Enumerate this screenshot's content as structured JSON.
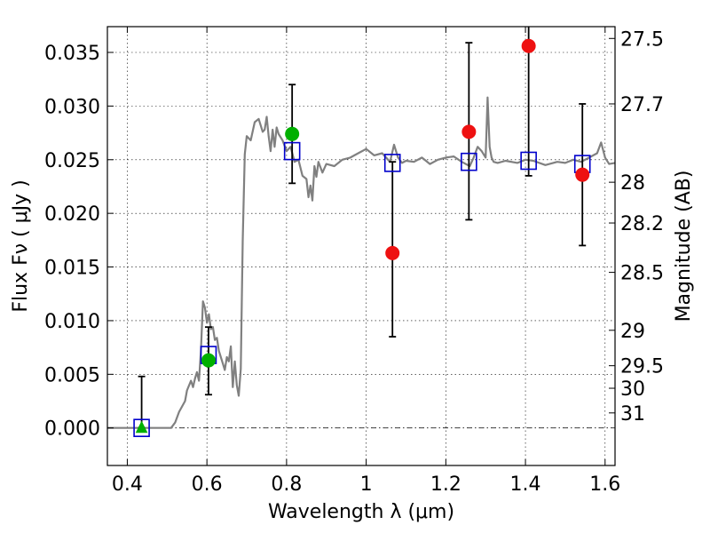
{
  "chart_data": {
    "type": "scatter",
    "xlabel": "Wavelength  λ (μm)",
    "ylabel": "Flux  Fν  ( μJy )",
    "ylabel_right": "Magnitude (AB)",
    "xlim": [
      0.35,
      1.625
    ],
    "ylim": [
      -0.0035,
      0.0374
    ],
    "x_ticks": [
      0.4,
      0.6,
      0.8,
      1.0,
      1.2,
      1.4,
      1.6
    ],
    "x_tick_labels": [
      "0.4",
      "0.6",
      "0.8",
      "1",
      "1.2",
      "1.4",
      "1.6"
    ],
    "y_ticks": [
      0.0,
      0.005,
      0.01,
      0.015,
      0.02,
      0.025,
      0.03,
      0.035
    ],
    "y_tick_labels": [
      "0.000",
      "0.005",
      "0.010",
      "0.015",
      "0.020",
      "0.025",
      "0.030",
      "0.035"
    ],
    "magnitude_ticks": [
      {
        "label": "27.5",
        "flux": 0.0363
      },
      {
        "label": "27.7",
        "flux": 0.0302
      },
      {
        "label": "28",
        "flux": 0.0229
      },
      {
        "label": "28.2",
        "flux": 0.0191
      },
      {
        "label": "28.5",
        "flux": 0.0145
      },
      {
        "label": "29",
        "flux": 0.0091
      },
      {
        "label": "29.5",
        "flux": 0.0058
      },
      {
        "label": "30",
        "flux": 0.0037
      },
      {
        "label": "31",
        "flux": 0.0014
      }
    ],
    "grid": true,
    "zero_line": true,
    "colors": {
      "model": "#808080",
      "box": "#0000cc",
      "green": "#00b000",
      "red": "#ee1111",
      "errorbar": "#000000"
    },
    "model_spectrum": {
      "x": [
        0.35,
        0.44,
        0.51,
        0.52,
        0.53,
        0.545,
        0.55,
        0.56,
        0.565,
        0.57,
        0.575,
        0.58,
        0.585,
        0.59,
        0.595,
        0.6,
        0.605,
        0.61,
        0.615,
        0.62,
        0.625,
        0.63,
        0.64,
        0.645,
        0.65,
        0.655,
        0.66,
        0.665,
        0.67,
        0.675,
        0.68,
        0.685,
        0.69,
        0.695,
        0.7,
        0.71,
        0.72,
        0.73,
        0.74,
        0.745,
        0.75,
        0.755,
        0.76,
        0.765,
        0.77,
        0.775,
        0.78,
        0.79,
        0.8,
        0.81,
        0.82,
        0.83,
        0.84,
        0.85,
        0.855,
        0.86,
        0.865,
        0.87,
        0.875,
        0.88,
        0.89,
        0.9,
        0.92,
        0.94,
        0.96,
        0.98,
        1.0,
        1.02,
        1.04,
        1.06,
        1.07,
        1.08,
        1.09,
        1.1,
        1.12,
        1.14,
        1.16,
        1.18,
        1.2,
        1.22,
        1.24,
        1.26,
        1.27,
        1.28,
        1.29,
        1.3,
        1.305,
        1.31,
        1.315,
        1.32,
        1.33,
        1.35,
        1.38,
        1.4,
        1.42,
        1.45,
        1.48,
        1.5,
        1.52,
        1.54,
        1.56,
        1.58,
        1.59,
        1.6,
        1.61,
        1.625
      ],
      "y": [
        0.0,
        0.0,
        0.0,
        0.0005,
        0.0015,
        0.0025,
        0.0035,
        0.0044,
        0.0038,
        0.0046,
        0.0052,
        0.0044,
        0.0072,
        0.0118,
        0.0112,
        0.0098,
        0.0106,
        0.0092,
        0.0094,
        0.0082,
        0.0084,
        0.0072,
        0.006,
        0.0054,
        0.0066,
        0.0062,
        0.0076,
        0.0038,
        0.0062,
        0.004,
        0.003,
        0.0055,
        0.0175,
        0.0255,
        0.0272,
        0.0268,
        0.0285,
        0.0288,
        0.0276,
        0.0278,
        0.029,
        0.0272,
        0.0258,
        0.0278,
        0.0262,
        0.028,
        0.0274,
        0.0268,
        0.0258,
        0.0262,
        0.0248,
        0.025,
        0.0235,
        0.0232,
        0.0215,
        0.0226,
        0.0212,
        0.0244,
        0.0234,
        0.0248,
        0.0238,
        0.0246,
        0.0244,
        0.025,
        0.0252,
        0.0256,
        0.026,
        0.0254,
        0.0256,
        0.0248,
        0.0264,
        0.0252,
        0.0247,
        0.0249,
        0.0248,
        0.0252,
        0.0246,
        0.025,
        0.0252,
        0.0253,
        0.0248,
        0.0244,
        0.0252,
        0.0262,
        0.0258,
        0.0252,
        0.0308,
        0.0262,
        0.0252,
        0.0248,
        0.0247,
        0.0249,
        0.0247,
        0.025,
        0.0249,
        0.0245,
        0.0248,
        0.0247,
        0.025,
        0.0248,
        0.0252,
        0.0256,
        0.0266,
        0.0252,
        0.0246,
        0.0247
      ]
    },
    "model_photometry": {
      "name": "model bandpass fluxes (open squares)",
      "x": [
        0.436,
        0.604,
        0.814,
        1.066,
        1.258,
        1.408,
        1.543
      ],
      "y": [
        0.0,
        0.0068,
        0.0258,
        0.0247,
        0.0248,
        0.0249,
        0.0246
      ]
    },
    "observed_detections": {
      "name": "green points",
      "x": [
        0.436,
        0.604,
        0.814
      ],
      "y": [
        0.0,
        0.0063,
        0.0274
      ],
      "err_low": [
        0.0,
        0.0031,
        0.0228
      ],
      "err_high": [
        0.0048,
        0.0094,
        0.032
      ],
      "markers": [
        "triangle",
        "circle",
        "circle"
      ]
    },
    "observed_red": {
      "name": "red points",
      "x": [
        1.066,
        1.258,
        1.408,
        1.543
      ],
      "y": [
        0.0163,
        0.0276,
        0.0356,
        0.0236
      ],
      "err_low": [
        0.0085,
        0.0194,
        0.0235,
        0.017
      ],
      "err_high": [
        0.0248,
        0.0359,
        0.0374,
        0.0302
      ]
    }
  }
}
